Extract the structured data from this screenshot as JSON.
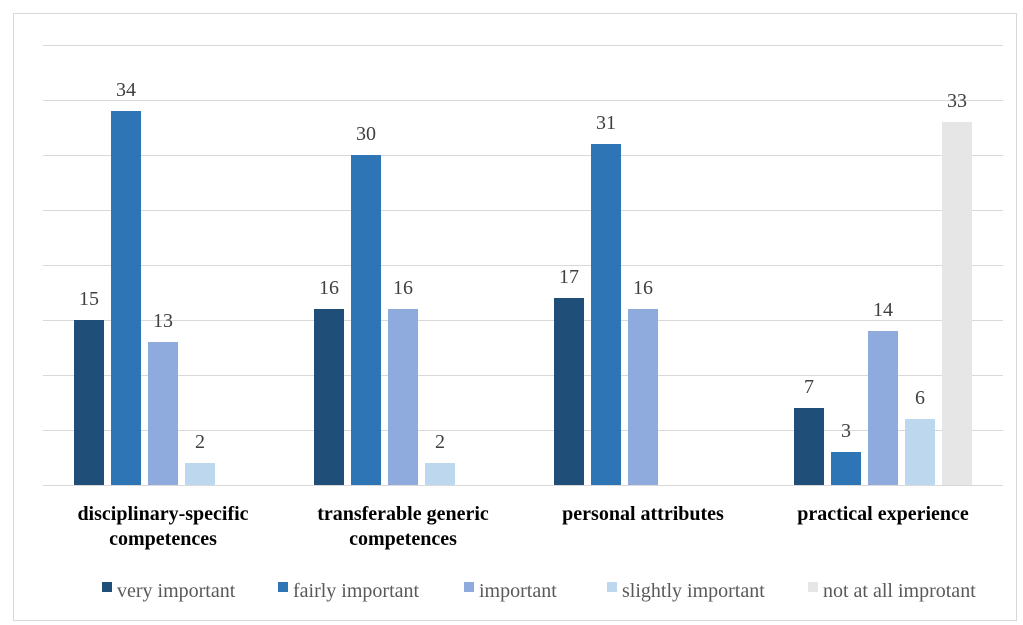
{
  "chart_data": {
    "type": "bar",
    "title": "",
    "xlabel": "",
    "ylabel": "",
    "ylim": [
      0,
      40
    ],
    "grid": true,
    "legend_position": "bottom",
    "categories": [
      [
        "disciplinary-specific",
        "competences"
      ],
      [
        "transferable generic",
        "competences"
      ],
      [
        "personal attributes"
      ],
      [
        "practical experience"
      ]
    ],
    "series": [
      {
        "name": "very important",
        "color": "#1f4e79",
        "values": [
          15,
          16,
          17,
          7
        ]
      },
      {
        "name": "fairly important",
        "color": "#2e75b6",
        "values": [
          34,
          30,
          31,
          3
        ]
      },
      {
        "name": "important",
        "color": "#8faadc",
        "values": [
          13,
          16,
          16,
          14
        ]
      },
      {
        "name": "slightly important",
        "color": "#bdd7ee",
        "values": [
          2,
          2,
          null,
          6
        ]
      },
      {
        "name": "not at all improtant",
        "color": "#e7e6e6",
        "values": [
          null,
          null,
          null,
          33
        ]
      }
    ]
  }
}
